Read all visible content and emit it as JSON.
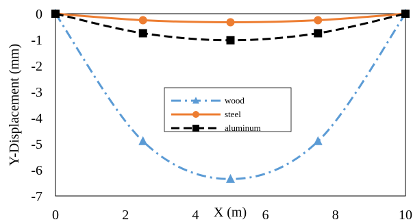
{
  "chart_data": {
    "type": "line",
    "xlabel": "X (m)",
    "ylabel": "Y-Displacement (mm)",
    "xlim": [
      0,
      10
    ],
    "ylim": [
      -7,
      0
    ],
    "x_ticks": [
      0,
      2,
      4,
      6,
      8,
      10
    ],
    "y_ticks": [
      0,
      -1,
      -2,
      -3,
      -4,
      -5,
      -6,
      -7
    ],
    "x_tick_labels": [
      "0",
      "2",
      "4",
      "6",
      "8",
      "10"
    ],
    "y_tick_labels": [
      "0",
      "-1",
      "-2",
      "-3",
      "-4",
      "-5",
      "-6",
      "-7"
    ],
    "grid": false,
    "legend_position": "center",
    "series": [
      {
        "name": "wood",
        "color": "#5b9bd5",
        "line_style": "dash-dot",
        "marker": "triangle",
        "marker_x": [
          0,
          2.5,
          5,
          7.5,
          10
        ],
        "marker_y": [
          0,
          -4.9,
          -6.35,
          -4.9,
          0
        ]
      },
      {
        "name": "steel",
        "color": "#ed7d31",
        "line_style": "solid",
        "marker": "circle",
        "marker_x": [
          0,
          2.5,
          5,
          7.5,
          10
        ],
        "marker_y": [
          0,
          -0.25,
          -0.33,
          -0.25,
          0
        ]
      },
      {
        "name": "aluminum",
        "color": "#000000",
        "line_style": "dash",
        "marker": "square",
        "marker_x": [
          0,
          2.5,
          5,
          7.5,
          10
        ],
        "marker_y": [
          0,
          -0.75,
          -1.02,
          -0.75,
          0
        ]
      }
    ]
  }
}
